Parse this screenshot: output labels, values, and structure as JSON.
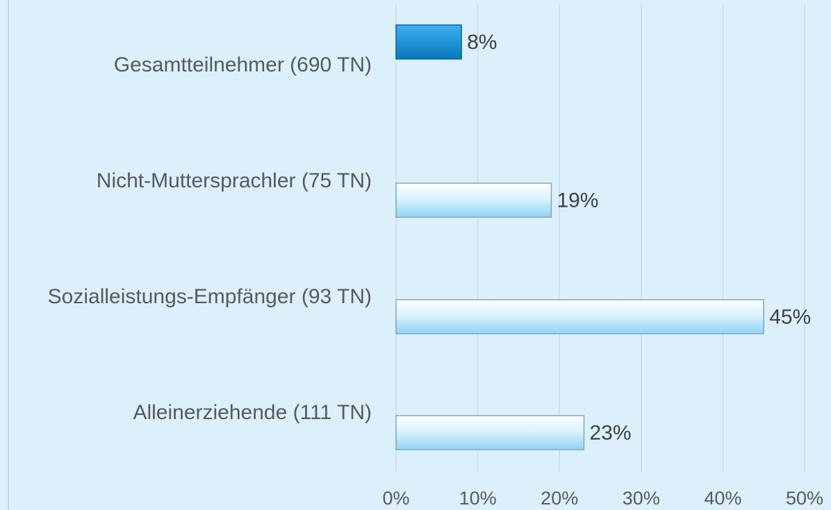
{
  "chart_data": {
    "type": "bar",
    "orientation": "horizontal",
    "categories": [
      "Gesamtteilnehmer (690 TN)",
      "Nicht-Muttersprachler (75 TN)",
      "Sozialleistungs-Empfänger (93 TN)",
      "Alleinerziehende (111 TN)"
    ],
    "values": [
      8,
      19,
      45,
      23
    ],
    "value_labels": [
      "8%",
      "19%",
      "45%",
      "23%"
    ],
    "colors": [
      "#0a8ed6",
      "#bfe8fb",
      "#bfe8fb",
      "#bfe8fb"
    ],
    "xlim": [
      0,
      50
    ],
    "xticks": [
      {
        "value": 0,
        "label": "0%"
      },
      {
        "value": 10,
        "label": "10%"
      },
      {
        "value": 20,
        "label": "20%"
      },
      {
        "value": 30,
        "label": "30%"
      },
      {
        "value": 40,
        "label": "40%"
      },
      {
        "value": 50,
        "label": "50%"
      }
    ],
    "grid": true
  }
}
